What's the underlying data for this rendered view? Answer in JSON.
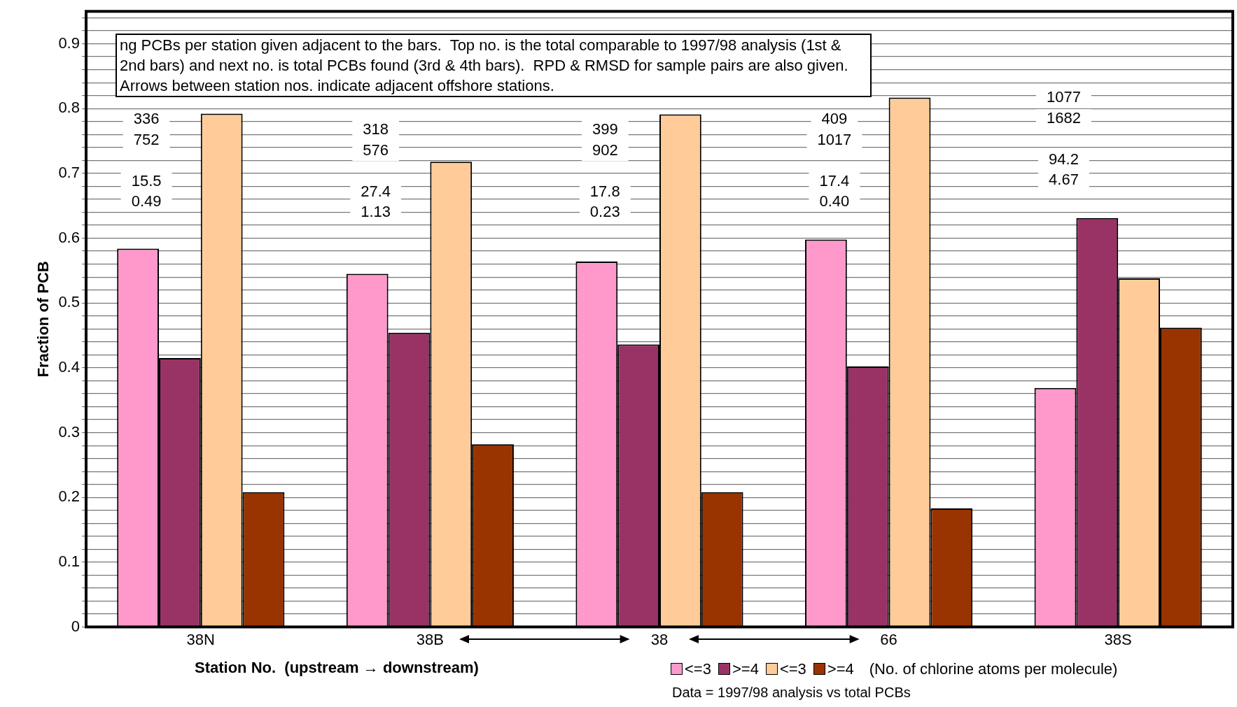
{
  "chart_data": {
    "type": "bar",
    "ylabel": "Fraction of PCB",
    "xlabel": "Station No.  (upstream → downstream)",
    "legend_title": "(No. of chlorine atoms per molecule)",
    "categories": [
      "38N",
      "38B",
      "38",
      "66",
      "38S"
    ],
    "series": [
      {
        "name": "<=3",
        "color": "#ff99cc",
        "values": [
          0.584,
          0.545,
          0.564,
          0.598,
          0.369
        ]
      },
      {
        "name": ">=4",
        "color": "#993366",
        "values": [
          0.415,
          0.454,
          0.436,
          0.402,
          0.631
        ]
      },
      {
        "name": "<=3",
        "color": "#ffcc99",
        "values": [
          0.792,
          0.718,
          0.791,
          0.817,
          0.538
        ]
      },
      {
        "name": ">=4",
        "color": "#993300",
        "values": [
          0.208,
          0.282,
          0.208,
          0.183,
          0.462
        ]
      }
    ],
    "ylim": [
      0,
      0.95
    ],
    "yticks": [
      0,
      {
        "value": 0.02,
        "label": null
      },
      {
        "value": 0.04,
        "label": null
      },
      {
        "value": 0.06,
        "label": null
      },
      {
        "value": 0.08,
        "label": null
      },
      0.1,
      {
        "value": 0.12,
        "label": null
      },
      {
        "value": 0.14,
        "label": null
      },
      {
        "value": 0.16,
        "label": null
      },
      {
        "value": 0.18,
        "label": null
      },
      0.2,
      {
        "value": 0.22,
        "label": null
      },
      {
        "value": 0.24,
        "label": null
      },
      {
        "value": 0.26,
        "label": null
      },
      {
        "value": 0.28,
        "label": null
      },
      0.3,
      {
        "value": 0.32,
        "label": null
      },
      {
        "value": 0.34,
        "label": null
      },
      {
        "value": 0.36,
        "label": null
      },
      {
        "value": 0.38,
        "label": null
      },
      0.4,
      {
        "value": 0.42,
        "label": null
      },
      {
        "value": 0.44,
        "label": null
      },
      {
        "value": 0.46,
        "label": null
      },
      {
        "value": 0.48,
        "label": null
      },
      0.5,
      {
        "value": 0.52,
        "label": null
      },
      {
        "value": 0.54,
        "label": null
      },
      {
        "value": 0.56,
        "label": null
      },
      {
        "value": 0.58,
        "label": null
      },
      0.6,
      {
        "value": 0.62,
        "label": null
      },
      {
        "value": 0.64,
        "label": null
      },
      {
        "value": 0.66,
        "label": null
      },
      {
        "value": 0.68,
        "label": null
      },
      0.7,
      {
        "value": 0.72,
        "label": null
      },
      {
        "value": 0.74,
        "label": null
      },
      {
        "value": 0.76,
        "label": null
      },
      {
        "value": 0.78,
        "label": null
      },
      0.8,
      {
        "value": 0.82,
        "label": null
      },
      {
        "value": 0.84,
        "label": null
      },
      {
        "value": 0.86,
        "label": null
      },
      {
        "value": 0.88,
        "label": null
      },
      0.9,
      {
        "value": 0.92,
        "label": null
      },
      {
        "value": 0.94,
        "label": null
      }
    ],
    "grid": "y",
    "legend": "bottom right",
    "annotations": [
      "ng PCBs per station given adjacent to the bars.  Top no. is the total comparable to 1997/98 analysis (1st & 2nd bars) and next no. is total PCBs found (3rd & 4th bars).  RPD & RMSD for sample pairs are also given.  Arrows between station nos. indicate adjacent offshore stations.",
      "Data = 1997/98 analysis vs total PCBs",
      "336",
      "752",
      "15.5",
      "0.49",
      "318",
      "576",
      "27.4",
      "1.13",
      "399",
      "902",
      "17.8",
      "0.23",
      "409",
      "1017",
      "17.4",
      "0.40",
      "1077",
      "1682",
      "94.2",
      "4.67"
    ]
  }
}
